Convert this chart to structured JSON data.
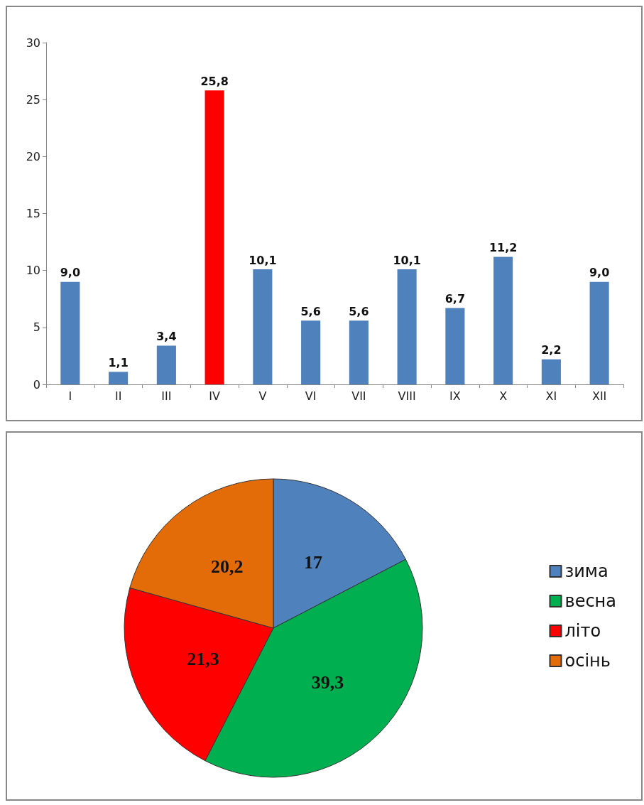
{
  "chart_data": [
    {
      "type": "bar",
      "categories": [
        "I",
        "II",
        "III",
        "IV",
        "V",
        "VI",
        "VII",
        "VIII",
        "IX",
        "X",
        "XI",
        "XII"
      ],
      "values": [
        9.0,
        1.1,
        3.4,
        25.8,
        10.1,
        5.6,
        5.6,
        10.1,
        6.7,
        11.2,
        2.2,
        9.0
      ],
      "colors": [
        "#4f81bd",
        "#4f81bd",
        "#4f81bd",
        "#ff0000",
        "#4f81bd",
        "#4f81bd",
        "#4f81bd",
        "#4f81bd",
        "#4f81bd",
        "#4f81bd",
        "#4f81bd",
        "#4f81bd"
      ],
      "value_labels": [
        "9,0",
        "1,1",
        "3,4",
        "25,8",
        "10,1",
        "5,6",
        "5,6",
        "10,1",
        "6,7",
        "11,2",
        "2,2",
        "9,0"
      ],
      "ylim": [
        0,
        30
      ],
      "yticks": [
        0,
        5,
        10,
        15,
        20,
        25,
        30
      ],
      "grid": false,
      "legend": false
    },
    {
      "type": "pie",
      "categories": [
        "зима",
        "весна",
        "літо",
        "осінь"
      ],
      "values": [
        17,
        39.3,
        21.3,
        20.2
      ],
      "colors": [
        "#4f81bd",
        "#00b050",
        "#ff0000",
        "#e36c09"
      ],
      "value_labels": [
        "17",
        "39,3",
        "21,3",
        "20,2"
      ],
      "legend": "right"
    }
  ]
}
